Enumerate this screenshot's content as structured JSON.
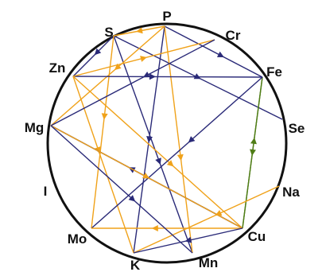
{
  "colors": {
    "blue": "#2a2a78",
    "orange": "#f0a21a",
    "green": "#4f7d16",
    "outline": "#111111",
    "background": "#ffffff"
  },
  "nodes": [
    {
      "id": "P",
      "label": "P"
    },
    {
      "id": "Cr",
      "label": "Cr"
    },
    {
      "id": "Fe",
      "label": "Fe"
    },
    {
      "id": "Se",
      "label": "Se"
    },
    {
      "id": "Na",
      "label": "Na"
    },
    {
      "id": "Cu",
      "label": "Cu"
    },
    {
      "id": "Mn",
      "label": "Mn"
    },
    {
      "id": "K",
      "label": "K"
    },
    {
      "id": "Mo",
      "label": "Mo"
    },
    {
      "id": "I",
      "label": "I"
    },
    {
      "id": "Mg",
      "label": "Mg"
    },
    {
      "id": "Zn",
      "label": "Zn"
    },
    {
      "id": "S",
      "label": "S"
    }
  ],
  "edges": [
    {
      "source": "S",
      "target": "Zn",
      "color": "blue"
    },
    {
      "source": "S",
      "target": "Se",
      "color": "blue"
    },
    {
      "source": "S",
      "target": "Mn",
      "color": "blue"
    },
    {
      "source": "S",
      "target": "Mo",
      "color": "orange"
    },
    {
      "source": "P",
      "target": "S",
      "color": "orange"
    },
    {
      "source": "P",
      "target": "Fe",
      "color": "blue"
    },
    {
      "source": "P",
      "target": "Mg",
      "color": "orange"
    },
    {
      "source": "P",
      "target": "K",
      "color": "blue"
    },
    {
      "source": "P",
      "target": "Mn",
      "color": "orange"
    },
    {
      "source": "Zn",
      "target": "Fe",
      "color": "blue"
    },
    {
      "source": "Zn",
      "target": "Cr",
      "color": "orange"
    },
    {
      "source": "Zn",
      "target": "Cu",
      "color": "orange"
    },
    {
      "source": "Zn",
      "target": "K",
      "color": "orange"
    },
    {
      "source": "Fe",
      "target": "Cu",
      "color": "green"
    },
    {
      "source": "Cu",
      "target": "Fe",
      "color": "green"
    },
    {
      "source": "Fe",
      "target": "Mo",
      "color": "blue"
    },
    {
      "source": "Mg",
      "target": "Cu",
      "color": "blue"
    },
    {
      "source": "Cu",
      "target": "Mg",
      "color": "blue"
    },
    {
      "source": "Cr",
      "target": "Mg",
      "color": "blue"
    },
    {
      "source": "Mg",
      "target": "Cu",
      "color": "orange"
    },
    {
      "source": "Cu",
      "target": "Mo",
      "color": "orange"
    },
    {
      "source": "Na",
      "target": "K",
      "color": "orange"
    },
    {
      "source": "Cu",
      "target": "K",
      "color": "blue"
    },
    {
      "source": "Mg",
      "target": "Mn",
      "color": "blue"
    }
  ]
}
